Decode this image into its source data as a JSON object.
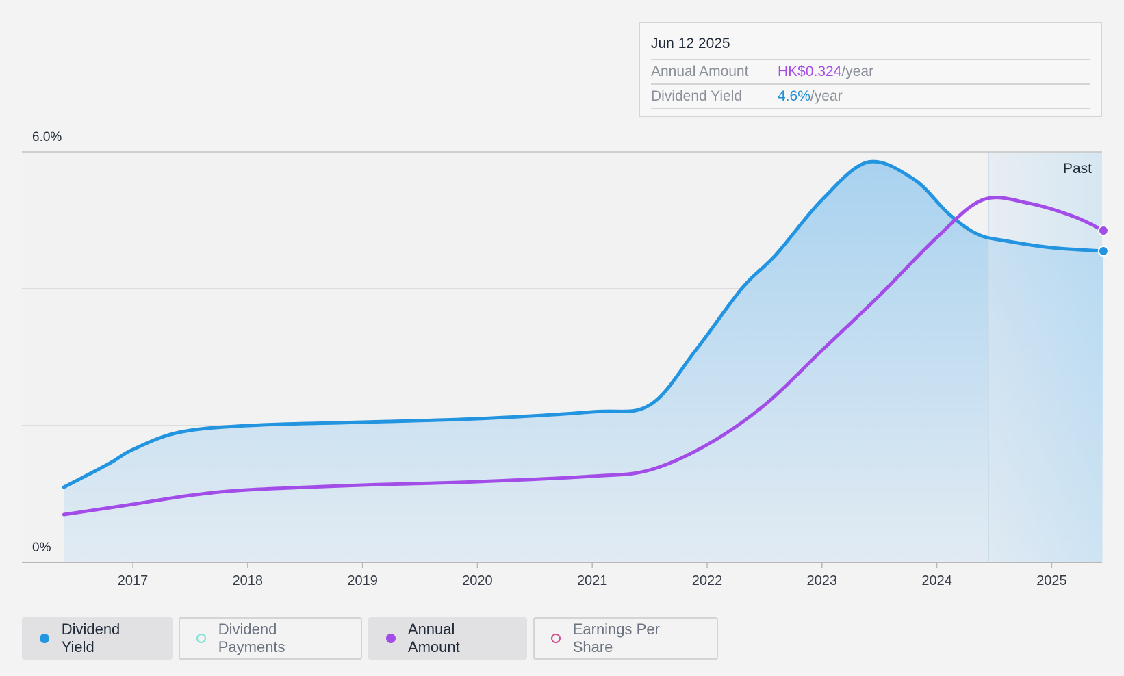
{
  "tooltip": {
    "date": "Jun 12 2025",
    "annual_label": "Annual Amount",
    "annual_value": "HK$0.324",
    "annual_unit": "/year",
    "yield_label": "Dividend Yield",
    "yield_value": "4.6%",
    "yield_unit": "/year"
  },
  "legend": [
    {
      "label": "Dividend Yield",
      "color": "#2394e0",
      "active": true,
      "filled": true
    },
    {
      "label": "Dividend Payments",
      "color": "#7ee0d6",
      "active": false,
      "filled": false
    },
    {
      "label": "Annual Amount",
      "color": "#a34de8",
      "active": true,
      "filled": true
    },
    {
      "label": "Earnings Per Share",
      "color": "#d0508a",
      "active": false,
      "filled": false
    }
  ],
  "chart_data": {
    "type": "area",
    "y_axis": {
      "top_label": "6.0%",
      "bottom_label": "0%",
      "ylim": [
        0,
        6.0
      ],
      "gridlines": [
        0,
        2,
        4,
        6
      ]
    },
    "x_axis": {
      "ticks": [
        "2017",
        "2018",
        "2019",
        "2020",
        "2021",
        "2022",
        "2023",
        "2024",
        "2025"
      ],
      "xlim": [
        2016.4,
        2025.45
      ]
    },
    "past_label": "Past",
    "past_start": 2024.45,
    "series": [
      {
        "name": "Dividend Yield",
        "color": "#2394e0",
        "fill": true,
        "points": [
          [
            2016.4,
            1.1
          ],
          [
            2016.8,
            1.45
          ],
          [
            2017.0,
            1.65
          ],
          [
            2017.4,
            1.9
          ],
          [
            2018.0,
            2.0
          ],
          [
            2019.0,
            2.05
          ],
          [
            2020.0,
            2.1
          ],
          [
            2021.0,
            2.2
          ],
          [
            2021.5,
            2.3
          ],
          [
            2021.9,
            3.1
          ],
          [
            2022.3,
            4.0
          ],
          [
            2022.6,
            4.5
          ],
          [
            2023.0,
            5.3
          ],
          [
            2023.4,
            5.85
          ],
          [
            2023.8,
            5.6
          ],
          [
            2024.1,
            5.1
          ],
          [
            2024.35,
            4.8
          ],
          [
            2024.6,
            4.7
          ],
          [
            2025.0,
            4.6
          ],
          [
            2025.45,
            4.55
          ]
        ]
      },
      {
        "name": "Annual Amount",
        "color": "#a34de8",
        "fill": false,
        "points": [
          [
            2016.4,
            0.7
          ],
          [
            2017.0,
            0.85
          ],
          [
            2017.5,
            0.98
          ],
          [
            2018.0,
            1.06
          ],
          [
            2019.0,
            1.13
          ],
          [
            2020.0,
            1.18
          ],
          [
            2021.0,
            1.26
          ],
          [
            2021.5,
            1.35
          ],
          [
            2022.0,
            1.72
          ],
          [
            2022.5,
            2.3
          ],
          [
            2023.0,
            3.1
          ],
          [
            2023.5,
            3.9
          ],
          [
            2024.0,
            4.75
          ],
          [
            2024.4,
            5.3
          ],
          [
            2024.8,
            5.25
          ],
          [
            2025.2,
            5.05
          ],
          [
            2025.45,
            4.85
          ]
        ]
      }
    ]
  }
}
